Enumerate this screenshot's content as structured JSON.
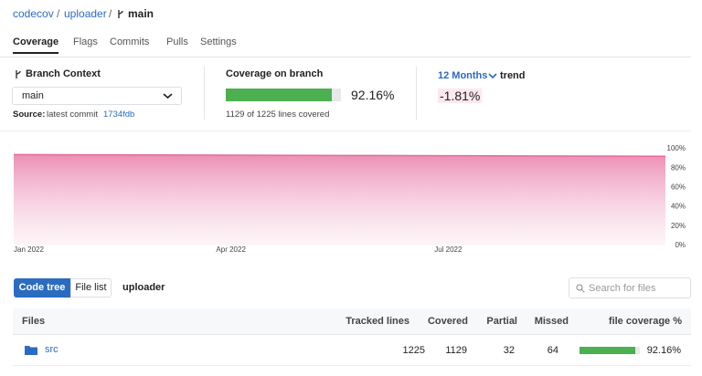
{
  "breadcrumb": {
    "owner": "codecov",
    "separator": "/",
    "repo": "uploader",
    "branch": "main"
  },
  "tabs": [
    "Coverage",
    "Flags",
    "Commits",
    "Pulls",
    "Settings"
  ],
  "branch_context": {
    "title": "Branch Context",
    "selected": "main",
    "source_label": "Source:",
    "source_text": "latest commit",
    "commit": "1734fdb"
  },
  "coverage": {
    "title": "Coverage on branch",
    "value": 92.16,
    "label": "92.16%",
    "lines_text": "1129 of 1225 lines covered"
  },
  "trend": {
    "period": "12 Months",
    "label": "trend",
    "change": "-1.81%"
  },
  "chart_data": {
    "type": "area",
    "categories": [
      "Jan 2022",
      null,
      null,
      "Apr 2022",
      null,
      null,
      "Jul 2022",
      null,
      null,
      null
    ],
    "series": [
      {
        "color": "#e46b99",
        "values": [
          94,
          93.8,
          93.6,
          93.4,
          93.2,
          93,
          92.8,
          92.6,
          92.4,
          92.2
        ]
      }
    ],
    "ylim": [
      0,
      100
    ],
    "yticks": [
      {
        "value": 0,
        "label": "0%"
      },
      {
        "value": 20,
        "label": "20%"
      },
      {
        "value": 40,
        "label": "40%"
      },
      {
        "value": 60,
        "label": "60%"
      },
      {
        "value": 80,
        "label": "80%"
      },
      {
        "value": 100,
        "label": "100%"
      }
    ]
  },
  "file_browser": {
    "toggles": [
      "Code tree",
      "File list"
    ],
    "path": "uploader",
    "search_placeholder": "Search for files",
    "headers": [
      "Files",
      "Tracked lines",
      "Covered",
      "Partial",
      "Missed",
      "file coverage %"
    ],
    "rows": [
      {
        "name": "src",
        "tracked": 1225,
        "covered": 1129,
        "partial": 32,
        "missed": 64,
        "coverage": {
          "value": 92.16,
          "label": "92.16%"
        }
      }
    ]
  }
}
